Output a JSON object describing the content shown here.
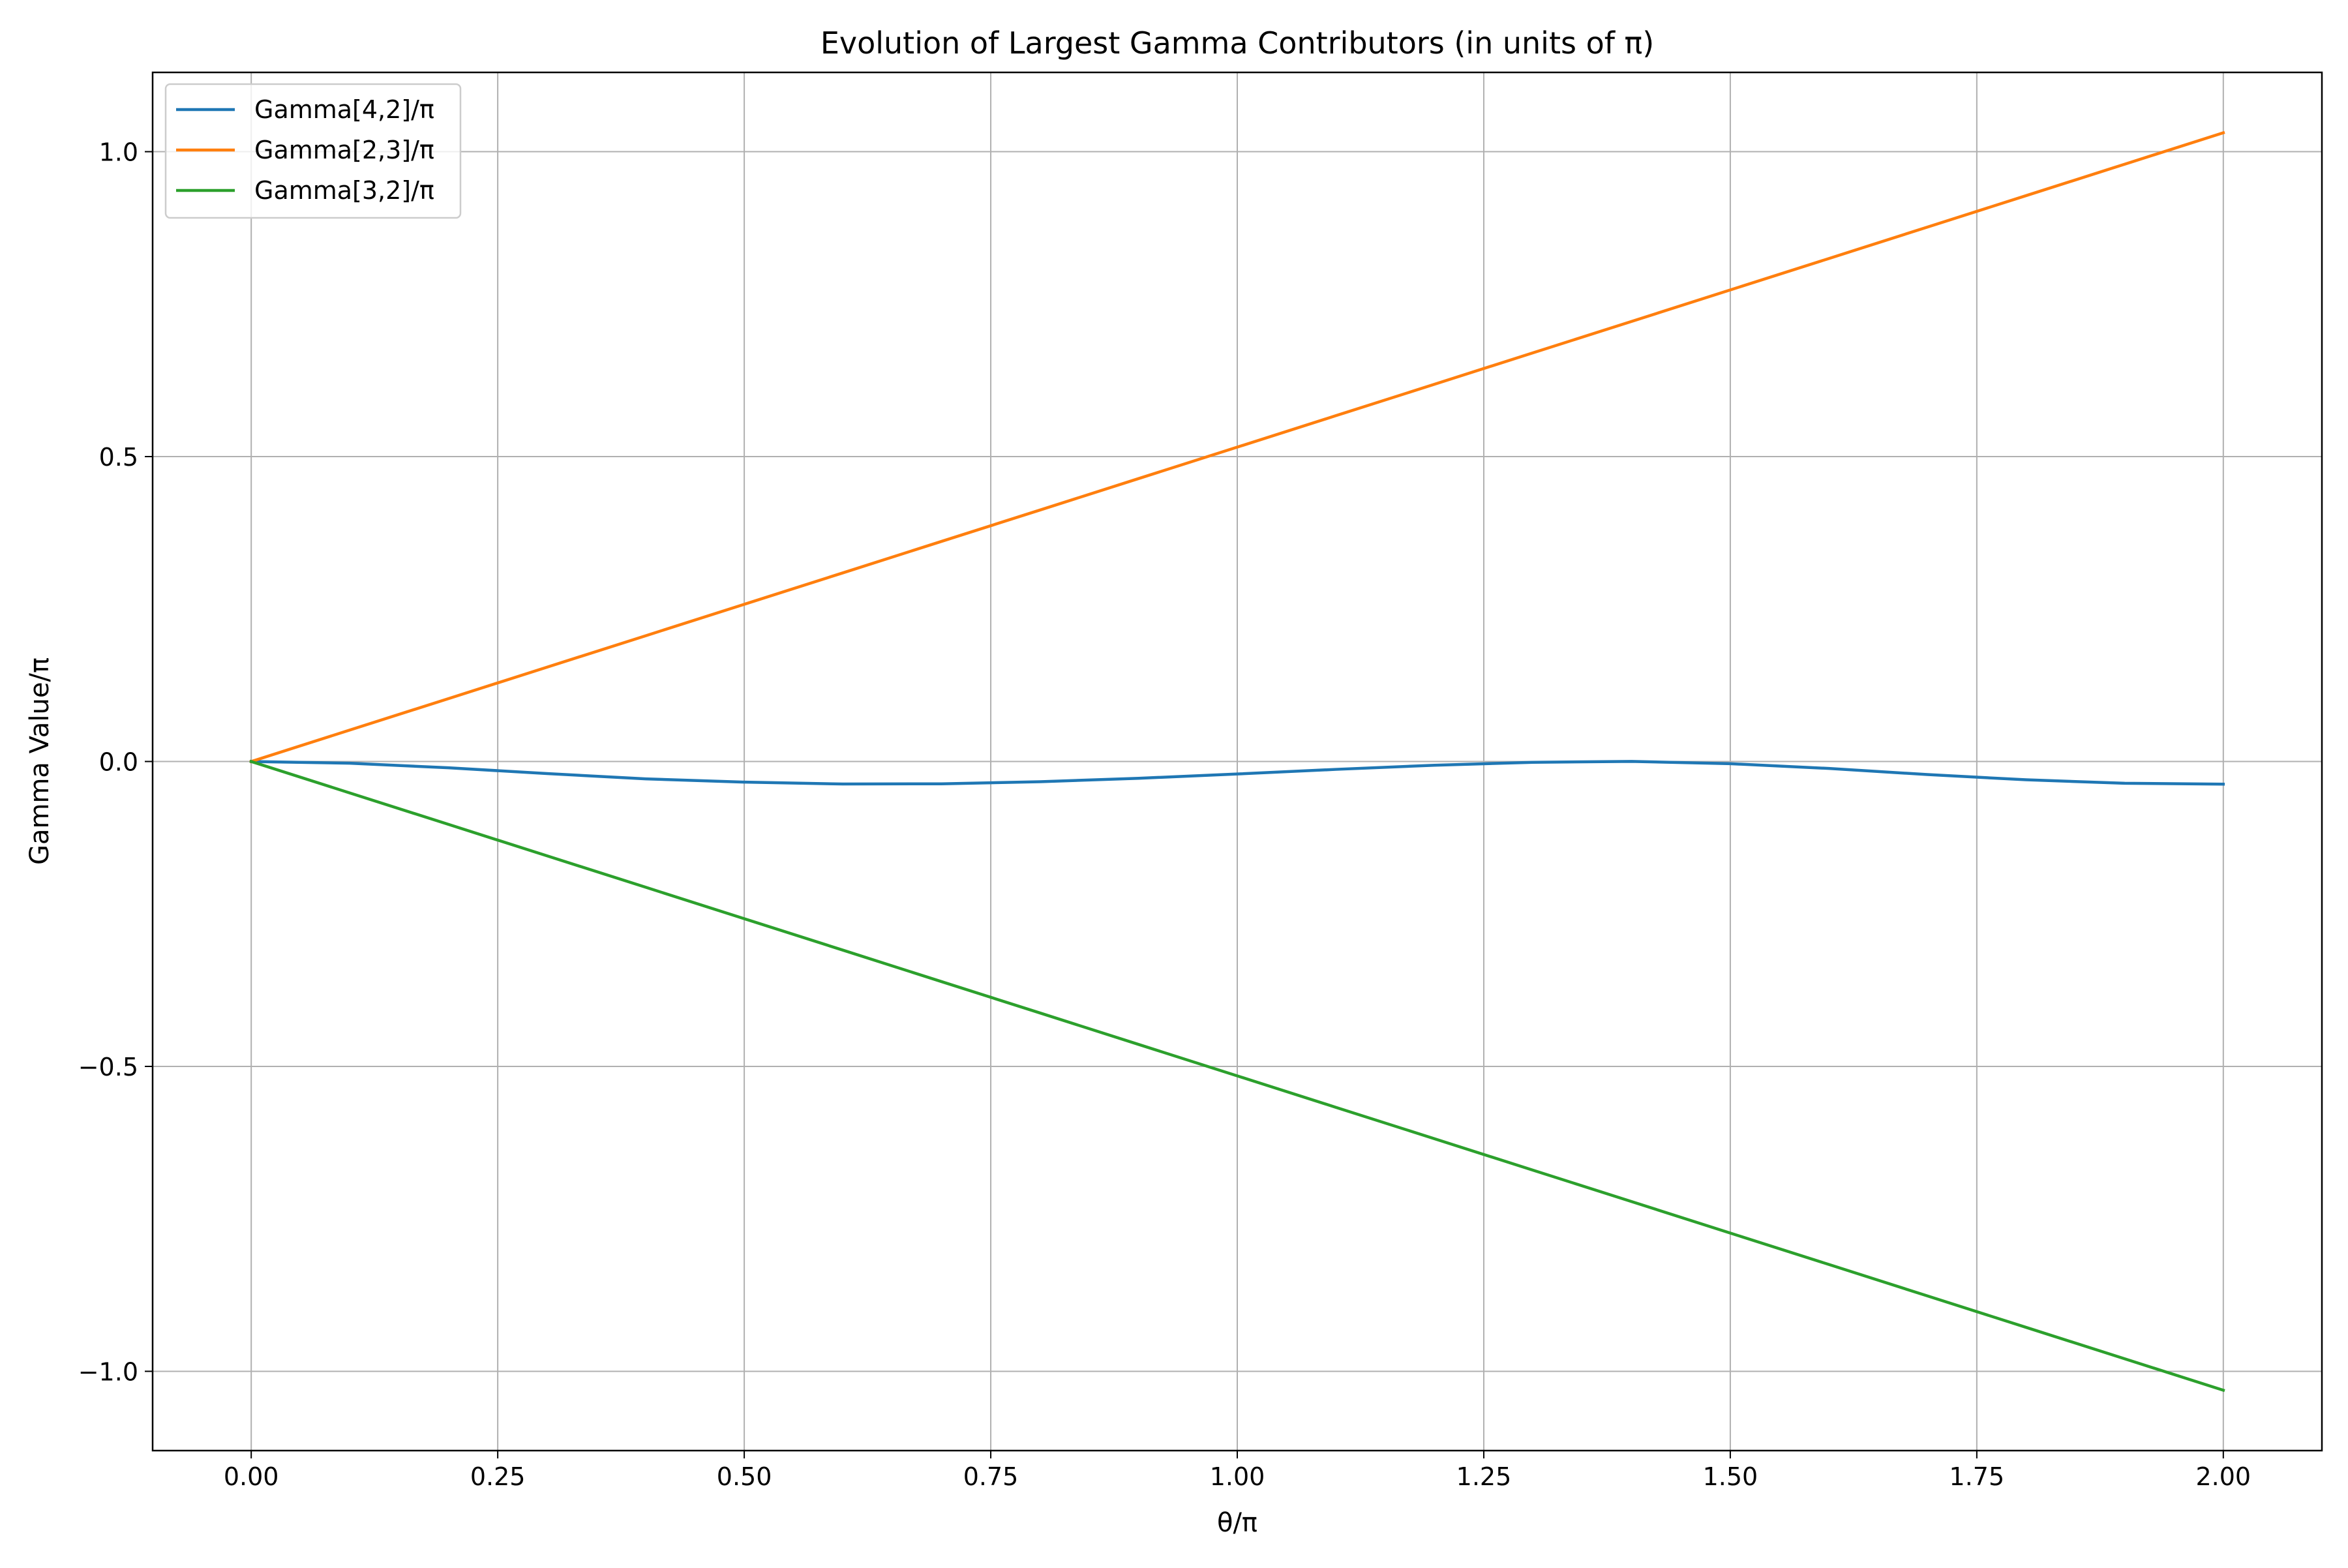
{
  "chart_data": {
    "type": "line",
    "title": "Evolution of Largest Gamma Contributors (in units of π)",
    "xlabel": "θ/π",
    "ylabel": "Gamma Value/π",
    "xlim": [
      -0.1,
      2.1
    ],
    "ylim": [
      -1.13,
      1.13
    ],
    "xticks": [
      0.0,
      0.25,
      0.5,
      0.75,
      1.0,
      1.25,
      1.5,
      1.75,
      2.0
    ],
    "xtick_labels": [
      "0.00",
      "0.25",
      "0.50",
      "0.75",
      "1.00",
      "1.25",
      "1.50",
      "1.75",
      "2.00"
    ],
    "yticks": [
      1.0,
      0.5,
      0.0,
      -0.5,
      -1.0
    ],
    "ytick_labels": [
      "1.0",
      "0.5",
      "0.0",
      "−0.5",
      "−1.0"
    ],
    "grid": true,
    "legend_position": "top-left",
    "x": [
      0.0,
      0.1,
      0.2,
      0.3,
      0.4,
      0.5,
      0.6,
      0.7,
      0.8,
      0.9,
      1.0,
      1.1,
      1.2,
      1.3,
      1.4,
      1.5,
      1.6,
      1.7,
      1.8,
      1.9,
      2.0
    ],
    "series": [
      {
        "name": "Gamma[4,2]/π",
        "color": "#1f77b4",
        "values": [
          0.0,
          -0.0028,
          -0.0103,
          -0.0198,
          -0.0285,
          -0.0338,
          -0.0369,
          -0.0366,
          -0.0331,
          -0.0275,
          -0.0205,
          -0.0129,
          -0.0061,
          -0.0013,
          0.0001,
          -0.0036,
          -0.0114,
          -0.0214,
          -0.03,
          -0.0357,
          -0.0372
        ]
      },
      {
        "name": "Gamma[2,3]/π",
        "color": "#ff7f0e",
        "values": [
          0.0,
          0.0516,
          0.1031,
          0.1547,
          0.2062,
          0.2578,
          0.3093,
          0.3609,
          0.4124,
          0.464,
          0.5155,
          0.5671,
          0.6186,
          0.6702,
          0.7217,
          0.7733,
          0.8248,
          0.8764,
          0.9279,
          0.9795,
          1.031
        ]
      },
      {
        "name": "Gamma[3,2]/π",
        "color": "#2ca02c",
        "values": [
          0.0,
          -0.0516,
          -0.1031,
          -0.1547,
          -0.2062,
          -0.2578,
          -0.3093,
          -0.3609,
          -0.4124,
          -0.464,
          -0.5155,
          -0.5671,
          -0.6186,
          -0.6702,
          -0.7217,
          -0.7733,
          -0.8248,
          -0.8764,
          -0.9279,
          -0.9795,
          -1.031
        ]
      }
    ]
  }
}
